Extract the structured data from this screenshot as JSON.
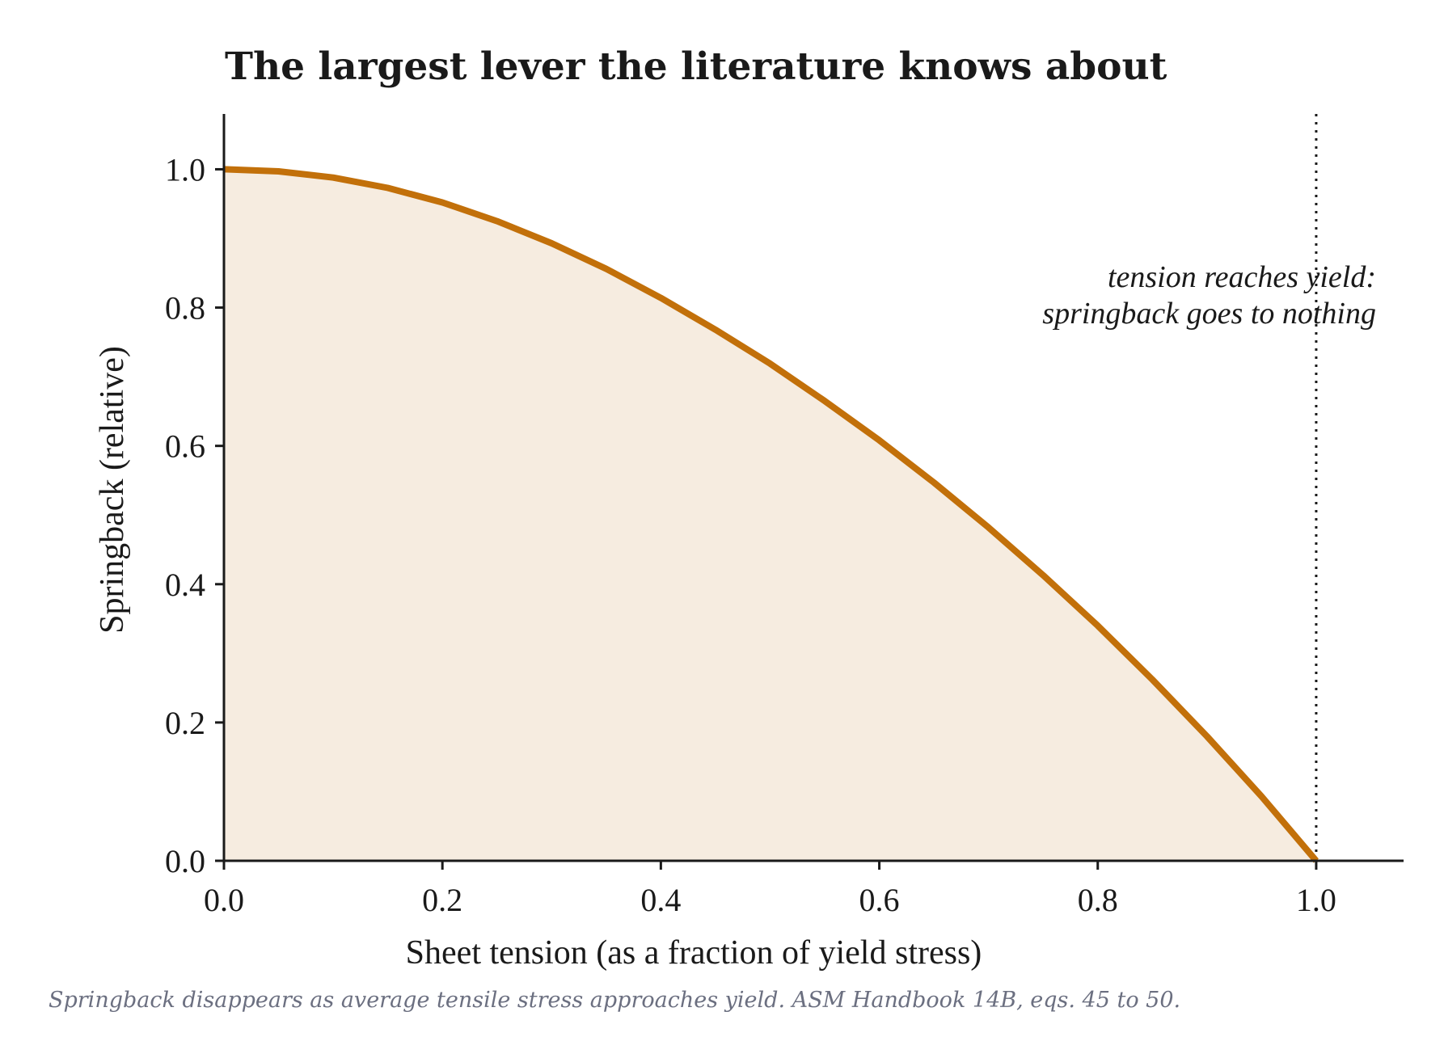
{
  "chart_data": {
    "type": "area",
    "title": "The largest lever the literature knows about",
    "xlabel": "Sheet tension (as a fraction of yield stress)",
    "ylabel": "Springback (relative)",
    "xlim": [
      0.0,
      1.08
    ],
    "ylim": [
      0.0,
      1.08
    ],
    "x_ticks": [
      0.0,
      0.2,
      0.4,
      0.6,
      0.8,
      1.0
    ],
    "x_tick_labels": [
      "0.0",
      "0.2",
      "0.4",
      "0.6",
      "0.8",
      "1.0"
    ],
    "y_ticks": [
      0.0,
      0.2,
      0.4,
      0.6,
      0.8,
      1.0
    ],
    "y_tick_labels": [
      "0.0",
      "0.2",
      "0.4",
      "0.6",
      "0.8",
      "1.0"
    ],
    "grid": false,
    "series": [
      {
        "x": [
          0.0,
          0.05,
          0.1,
          0.15,
          0.2,
          0.25,
          0.3,
          0.35,
          0.4,
          0.45,
          0.5,
          0.55,
          0.6,
          0.65,
          0.7,
          0.75,
          0.8,
          0.85,
          0.9,
          0.95,
          1.0
        ],
        "y": [
          1.0,
          0.997,
          0.988,
          0.973,
          0.952,
          0.925,
          0.893,
          0.856,
          0.814,
          0.768,
          0.719,
          0.665,
          0.608,
          0.547,
          0.482,
          0.413,
          0.34,
          0.262,
          0.18,
          0.093,
          0.0
        ],
        "color": "#c2700a",
        "fill": "#f6ece0"
      }
    ],
    "reference_line": {
      "orientation": "vertical",
      "x": 1.0,
      "style": "dotted",
      "color": "#1a1a1a"
    },
    "annotation": {
      "lines": [
        "tension reaches yield:",
        "springback goes to nothing"
      ]
    },
    "caption": "Springback disappears as average tensile stress approaches yield. ASM Handbook 14B, eqs. 45 to 50."
  }
}
